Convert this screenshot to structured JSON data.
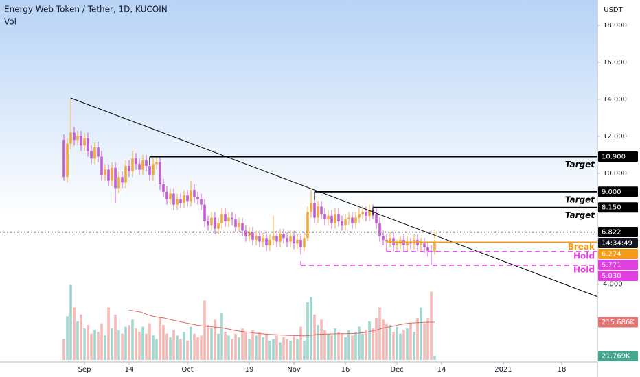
{
  "chart_data": {
    "type": "candlestick",
    "title": "Energy Web Token / Tether, 1D, KUCOIN",
    "volume_title": "Vol",
    "y_axis_label": "USDT",
    "up_color": "#f2a93b",
    "down_color": "#c35cd6",
    "volume_up_color": "#9fd8d0",
    "volume_down_color": "#f6b9b6",
    "volume_ma_color": "#e06666",
    "categories": [
      null,
      null,
      null,
      null,
      null,
      null,
      null,
      null,
      null,
      null,
      null,
      null,
      null,
      null,
      null,
      null,
      null,
      null,
      null,
      null,
      null,
      null,
      null,
      null,
      null,
      null,
      null,
      null,
      null,
      null,
      null,
      null,
      null,
      null,
      null,
      null,
      null,
      null,
      null,
      null,
      null,
      null,
      null,
      null,
      null,
      null,
      null,
      null,
      null,
      null,
      null,
      null,
      null,
      null,
      null,
      null,
      null,
      null,
      null,
      null,
      null,
      null,
      null,
      null,
      null,
      null,
      null,
      null,
      null,
      null,
      null,
      null,
      null,
      null,
      null,
      null,
      null,
      null,
      null,
      null,
      null,
      null,
      null,
      null,
      null,
      null,
      null,
      null,
      null,
      null,
      null,
      null,
      null,
      null,
      null,
      null,
      null,
      null,
      null,
      null,
      null,
      null,
      null,
      null,
      null,
      null,
      null,
      null,
      null
    ],
    "open": [
      11.8,
      9.8,
      11.6,
      12.2,
      11.8,
      12.0,
      11.5,
      11.9,
      11.2,
      10.8,
      11.4,
      10.9,
      9.9,
      10.2,
      9.6,
      10.3,
      9.2,
      9.8,
      9.5,
      10.4,
      10.1,
      10.8,
      10.5,
      10.2,
      10.7,
      10.4,
      9.9,
      10.5,
      10.6,
      9.4,
      9.0,
      8.6,
      8.9,
      8.3,
      8.6,
      8.4,
      8.8,
      8.5,
      9.1,
      8.7,
      8.6,
      8.3,
      7.4,
      7.2,
      7.6,
      7.0,
      7.3,
      7.8,
      7.4,
      7.6,
      7.5,
      7.1,
      7.3,
      6.9,
      6.6,
      6.8,
      6.4,
      6.6,
      6.3,
      6.5,
      6.1,
      6.4,
      6.6,
      6.3,
      6.7,
      6.5,
      6.3,
      6.6,
      6.2,
      6.4,
      6.0,
      6.5,
      7.9,
      8.4,
      7.6,
      8.2,
      7.8,
      7.5,
      7.7,
      7.3,
      7.8,
      7.4,
      7.2,
      7.5,
      7.6,
      7.3,
      7.6,
      7.8,
      7.9,
      7.7,
      8.0,
      7.8,
      7.3,
      6.6,
      6.4,
      6.3,
      6.5,
      6.1,
      6.2,
      6.4,
      6.1,
      6.3,
      6.2,
      6.4,
      6.1,
      6.2,
      6.0,
      5.8,
      5.77
    ],
    "high": [
      12.1,
      11.9,
      14.1,
      12.5,
      12.3,
      12.3,
      12.2,
      12.2,
      11.5,
      11.7,
      11.7,
      11.2,
      10.5,
      10.5,
      10.6,
      10.6,
      10.1,
      10.1,
      10.7,
      10.7,
      11.2,
      11.1,
      10.8,
      11.0,
      11.0,
      10.7,
      10.8,
      10.9,
      10.9,
      9.7,
      9.3,
      9.2,
      9.2,
      8.9,
      8.9,
      9.1,
      9.1,
      9.6,
      9.4,
      9.0,
      8.9,
      8.6,
      7.7,
      7.9,
      7.9,
      7.6,
      8.1,
      8.1,
      7.9,
      7.9,
      7.8,
      7.6,
      7.6,
      7.2,
      7.1,
      7.1,
      6.9,
      6.9,
      6.8,
      6.8,
      6.7,
      7.7,
      6.9,
      7.0,
      7.0,
      6.8,
      6.9,
      6.9,
      6.7,
      6.7,
      6.8,
      8.2,
      9.1,
      8.7,
      8.5,
      8.5,
      8.1,
      8.0,
      8.0,
      8.1,
      8.1,
      7.7,
      7.8,
      7.9,
      7.9,
      7.9,
      8.1,
      8.2,
      8.2,
      8.3,
      8.3,
      8.1,
      7.6,
      6.9,
      6.7,
      6.8,
      6.8,
      6.4,
      6.6,
      6.7,
      6.6,
      6.5,
      6.7,
      6.7,
      6.5,
      6.5,
      6.3,
      6.1,
      6.95
    ],
    "low": [
      9.6,
      9.5,
      11.3,
      11.5,
      11.5,
      11.2,
      11.2,
      10.9,
      10.5,
      10.5,
      10.6,
      9.6,
      9.6,
      9.3,
      9.3,
      8.4,
      8.9,
      9.2,
      9.2,
      9.8,
      9.8,
      10.2,
      9.9,
      9.9,
      10.1,
      9.6,
      9.6,
      10.2,
      9.1,
      8.7,
      8.3,
      8.3,
      8.0,
      8.0,
      8.1,
      8.1,
      8.2,
      8.2,
      8.4,
      8.3,
      8.0,
      7.1,
      6.9,
      6.9,
      6.7,
      6.7,
      7.0,
      7.1,
      7.1,
      7.2,
      6.8,
      6.8,
      6.6,
      6.3,
      6.3,
      6.1,
      6.1,
      6.0,
      6.0,
      5.8,
      5.8,
      6.1,
      6.0,
      6.0,
      6.2,
      6.0,
      6.0,
      5.9,
      5.9,
      5.6,
      5.8,
      6.3,
      7.6,
      7.3,
      7.3,
      7.5,
      7.2,
      7.2,
      7.0,
      7.0,
      7.1,
      6.9,
      6.9,
      7.2,
      7.0,
      7.0,
      7.3,
      7.5,
      7.4,
      7.4,
      7.5,
      7.0,
      6.3,
      6.1,
      6.0,
      6.0,
      5.8,
      5.8,
      5.9,
      5.8,
      5.8,
      5.9,
      5.9,
      5.8,
      5.8,
      5.7,
      5.5,
      5.03,
      5.6
    ],
    "close": [
      9.8,
      11.6,
      12.2,
      11.8,
      12.0,
      11.5,
      11.9,
      11.2,
      10.8,
      11.4,
      10.9,
      9.9,
      10.2,
      9.6,
      10.3,
      9.2,
      9.8,
      9.5,
      10.4,
      10.1,
      10.8,
      10.5,
      10.2,
      10.7,
      10.4,
      9.9,
      10.5,
      10.6,
      9.4,
      9.0,
      8.6,
      8.9,
      8.3,
      8.6,
      8.4,
      8.8,
      8.5,
      9.1,
      8.7,
      8.6,
      8.3,
      7.4,
      7.2,
      7.6,
      7.0,
      7.3,
      7.8,
      7.4,
      7.6,
      7.5,
      7.1,
      7.3,
      6.9,
      6.6,
      6.8,
      6.4,
      6.6,
      6.3,
      6.5,
      6.1,
      6.4,
      6.6,
      6.3,
      6.7,
      6.5,
      6.3,
      6.6,
      6.2,
      6.4,
      6.0,
      6.5,
      7.9,
      8.4,
      7.6,
      8.2,
      7.8,
      7.5,
      7.7,
      7.3,
      7.8,
      7.4,
      7.2,
      7.5,
      7.6,
      7.3,
      7.6,
      7.8,
      7.9,
      7.7,
      8.0,
      7.8,
      7.3,
      6.6,
      6.4,
      6.3,
      6.5,
      6.1,
      6.2,
      6.4,
      6.1,
      6.3,
      6.2,
      6.4,
      6.1,
      6.2,
      6.0,
      5.8,
      5.77,
      6.274
    ],
    "volume": [
      120000,
      250000,
      430000,
      300000,
      220000,
      260000,
      180000,
      200000,
      150000,
      170000,
      160000,
      210000,
      140000,
      300000,
      180000,
      260000,
      170000,
      150000,
      190000,
      200000,
      230000,
      180000,
      160000,
      190000,
      150000,
      210000,
      140000,
      120000,
      240000,
      200000,
      150000,
      130000,
      170000,
      140000,
      120000,
      160000,
      110000,
      190000,
      150000,
      130000,
      140000,
      340000,
      200000,
      180000,
      230000,
      150000,
      270000,
      160000,
      140000,
      120000,
      150000,
      130000,
      180000,
      160000,
      120000,
      170000,
      140000,
      160000,
      130000,
      150000,
      110000,
      120000,
      140000,
      100000,
      130000,
      120000,
      110000,
      140000,
      120000,
      190000,
      110000,
      330000,
      360000,
      260000,
      200000,
      230000,
      170000,
      150000,
      140000,
      180000,
      160000,
      150000,
      130000,
      170000,
      140000,
      160000,
      190000,
      150000,
      170000,
      220000,
      180000,
      240000,
      300000,
      230000,
      210000,
      200000,
      160000,
      190000,
      150000,
      170000,
      180000,
      210000,
      160000,
      240000,
      300000,
      210000,
      240000,
      390000,
      21769
    ],
    "volume_ma": [
      null,
      null,
      null,
      null,
      null,
      null,
      null,
      null,
      null,
      null,
      null,
      null,
      null,
      null,
      null,
      null,
      null,
      null,
      null,
      285000,
      282000,
      279000,
      276000,
      270000,
      262000,
      255000,
      250000,
      246000,
      242000,
      240000,
      236000,
      231000,
      226000,
      222000,
      218000,
      214000,
      210000,
      206000,
      202000,
      198000,
      196000,
      194000,
      192000,
      190000,
      188000,
      186000,
      184000,
      180000,
      176000,
      172000,
      168000,
      165000,
      162000,
      160000,
      158000,
      155000,
      153000,
      151000,
      149000,
      147000,
      146000,
      145000,
      144000,
      143000,
      142000,
      141000,
      140000,
      140000,
      139000,
      138000,
      138000,
      139000,
      141000,
      144000,
      146000,
      147000,
      148000,
      148000,
      149000,
      149000,
      150000,
      150000,
      150000,
      151000,
      151000,
      152000,
      153000,
      155000,
      158000,
      162000,
      166000,
      170000,
      176000,
      182000,
      186000,
      190000,
      194000,
      198000,
      202000,
      206000,
      209000,
      211000,
      212000,
      213000,
      214000,
      215000,
      216000,
      216000,
      215686
    ],
    "xlim": [
      -18.6,
      155.4
    ],
    "ylim": [
      -0.2,
      19.37
    ],
    "vol_ylim": [
      0,
      2060000
    ],
    "xticks": [
      {
        "value": 6,
        "label": "Sep"
      },
      {
        "value": 19,
        "label": "14"
      },
      {
        "value": 36,
        "label": "Oct"
      },
      {
        "value": 54,
        "label": "19"
      },
      {
        "value": 67,
        "label": "Nov"
      },
      {
        "value": 82,
        "label": "16"
      },
      {
        "value": 97,
        "label": "Dec"
      },
      {
        "value": 110,
        "label": "14"
      },
      {
        "value": 128,
        "label": "2021"
      },
      {
        "value": 145,
        "label": "18"
      }
    ],
    "yticks": [
      {
        "value": 18,
        "label": "18.000"
      },
      {
        "value": 16,
        "label": "16.000"
      },
      {
        "value": 14,
        "label": "14.000"
      },
      {
        "value": 12,
        "label": "12.000"
      },
      {
        "value": 10,
        "label": "10.000"
      },
      {
        "value": 4,
        "label": "4.000"
      }
    ],
    "trendline": {
      "x": [
        2,
        155.4
      ],
      "y": [
        14.07,
        3.33
      ],
      "color": "#000000"
    },
    "levels": [
      {
        "value": 10.9,
        "label": "10.900",
        "start": 25,
        "text": "Target",
        "color": "#000000",
        "style": "solid"
      },
      {
        "value": 9.0,
        "label": "9.000",
        "start": 73,
        "text": "Target",
        "color": "#000000",
        "style": "solid"
      },
      {
        "value": 8.15,
        "label": "8.150",
        "start": 90,
        "text": "Target",
        "color": "#000000",
        "style": "solid"
      },
      {
        "value": 6.274,
        "label": "6.274",
        "start": 94,
        "text": "Break",
        "color": "#f59c1a",
        "style": "solid"
      },
      {
        "value": 5.771,
        "label": "5.771",
        "start": 94,
        "text": "Hold",
        "color": "#e040e0",
        "style": "dashed"
      },
      {
        "value": 5.03,
        "label": "5.030",
        "start": 69,
        "text": "Hold",
        "color": "#e040e0",
        "style": "dashed"
      }
    ],
    "dotted_level": {
      "value": 6.822,
      "label": "6.822",
      "color": "#000000"
    },
    "countdown": "14:34:49",
    "vol_labels": [
      {
        "value": 215686,
        "label": "215.686K",
        "color": "#e57373"
      },
      {
        "value": 21769,
        "label": "21.769K",
        "color": "#43a88f"
      }
    ]
  }
}
